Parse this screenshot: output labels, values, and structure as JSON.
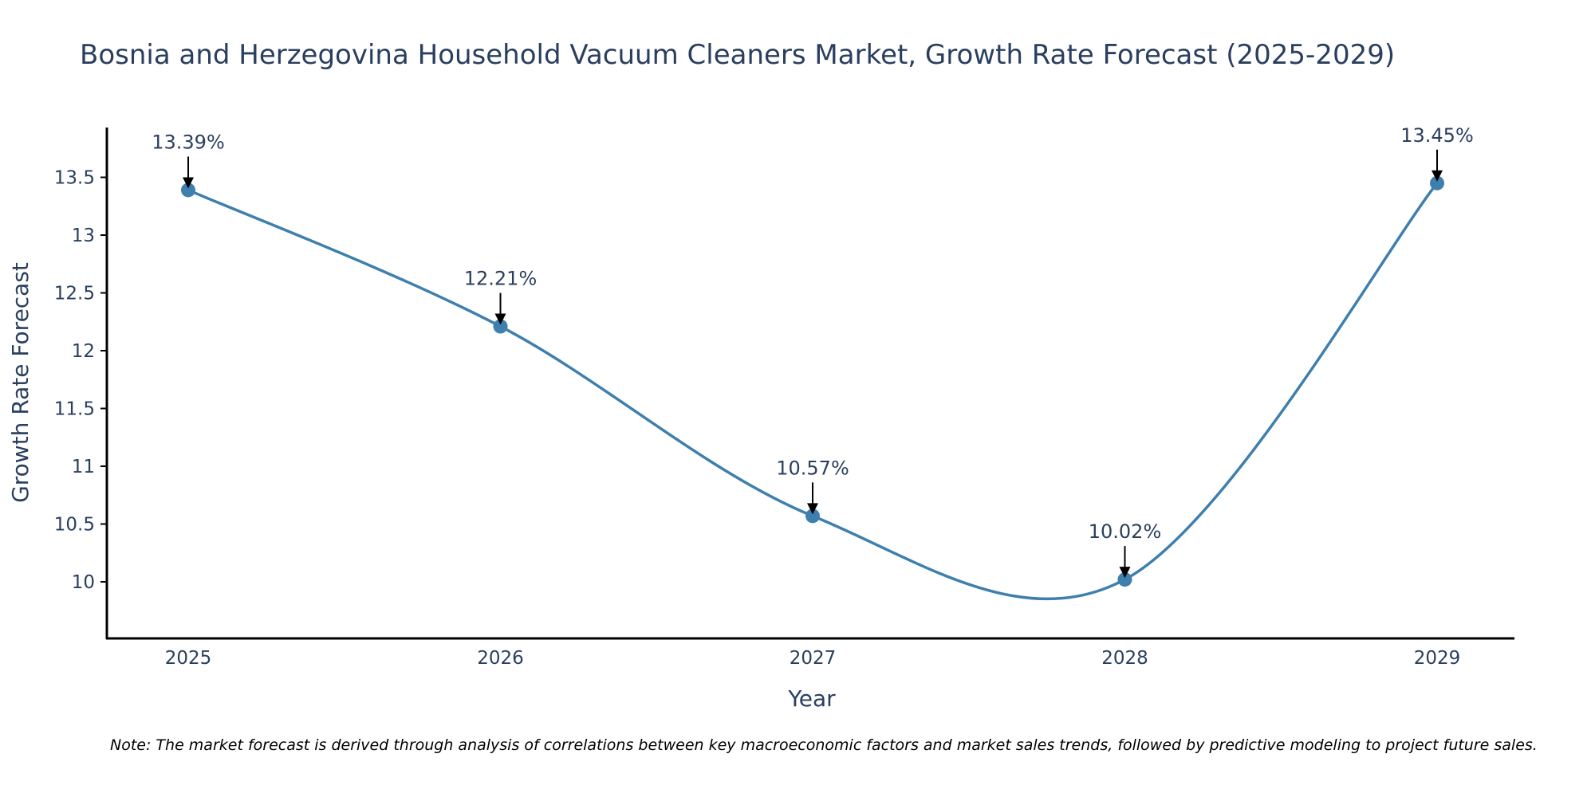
{
  "chart_data": {
    "type": "line",
    "title": "Bosnia and Herzegovina Household Vacuum Cleaners Market, Growth Rate Forecast (2025-2029)",
    "xlabel": "Year",
    "ylabel": "Growth Rate Forecast",
    "x": [
      "2025",
      "2026",
      "2027",
      "2028",
      "2029"
    ],
    "values": [
      13.39,
      12.21,
      10.57,
      10.02,
      13.45
    ],
    "data_labels": [
      "13.39%",
      "12.21%",
      "10.57%",
      "10.02%",
      "13.45%"
    ],
    "ylim": [
      9.5,
      13.9
    ],
    "yticks": [
      10,
      10.5,
      11,
      11.5,
      12,
      12.5,
      13,
      13.5
    ],
    "ytick_labels": [
      "10",
      "10.5",
      "11",
      "11.5",
      "12",
      "12.5",
      "13",
      "13.5"
    ],
    "grid": false,
    "line_color": "#3e7fad",
    "marker_color": "#3e7fad",
    "arrow_color": "#000000",
    "smooth": true
  },
  "note": "Note: The market forecast is derived through analysis of correlations between key macroeconomic factors and market sales trends, followed by predictive modeling to project future sales."
}
